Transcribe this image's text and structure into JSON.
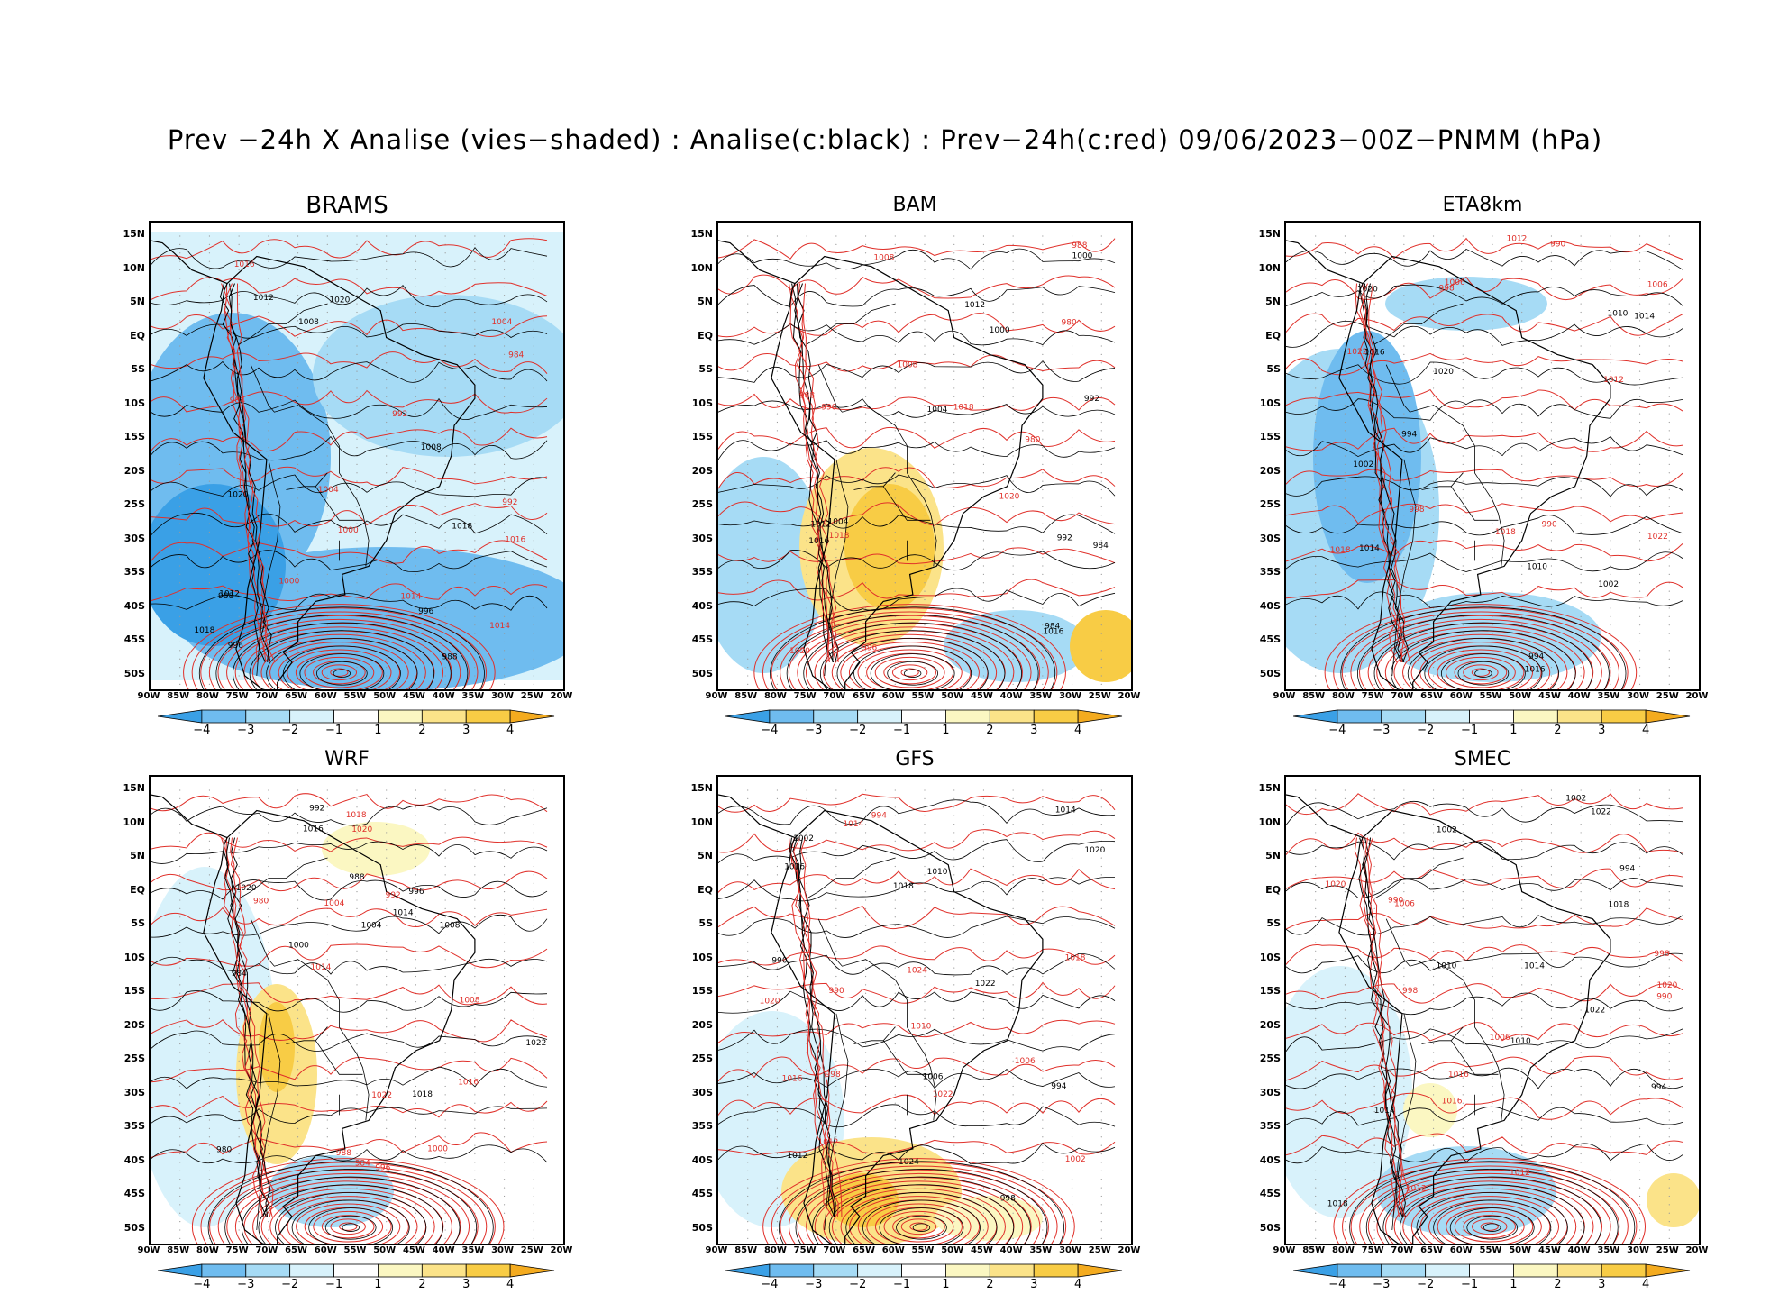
{
  "figure": {
    "title": "Prev −24h X Analise (vies−shaded) : Analise(c:black) : Prev−24h(c:red) 09/06/2023−00Z−PNMM (hPa)"
  },
  "colors": {
    "analysis_contour": "#000000",
    "forecast_contour": "#e0302a",
    "bias_neg4": "#3aa0e6",
    "bias_neg3": "#6fbcef",
    "bias_neg2": "#a6dbf5",
    "bias_neg1": "#d8f2fb",
    "bias_pos1": "#fbf7c2",
    "bias_pos2": "#fbe389",
    "bias_pos3": "#f8cc45",
    "bias_pos4": "#f4ab1f",
    "land_outline": "#000000",
    "grid": "#999999"
  },
  "axes": {
    "lat_labels": [
      "15N",
      "10N",
      "5N",
      "EQ",
      "5S",
      "10S",
      "15S",
      "20S",
      "25S",
      "30S",
      "35S",
      "40S",
      "45S",
      "50S"
    ],
    "lon_labels": [
      "90W",
      "85W",
      "80W",
      "75W",
      "70W",
      "65W",
      "60W",
      "55W",
      "50W",
      "45W",
      "40W",
      "35W",
      "30W",
      "25W",
      "20W"
    ]
  },
  "colorbar": {
    "labels": [
      "−4",
      "−3",
      "−2",
      "−1",
      "1",
      "2",
      "3",
      "4"
    ]
  },
  "chart_data": [
    {
      "type": "heatmap",
      "title": "BRAMS",
      "variable": "PNMM bias (hPa)",
      "lat_range": [
        -52,
        17
      ],
      "lon_range": [
        -90,
        -20
      ],
      "dominant_bias": "negative (−1 to −4) over most of domain",
      "contour_labels": [
        "1012",
        "1016",
        "1020",
        "1004",
        "1008",
        "1014",
        "1018",
        "1000",
        "996",
        "992",
        "988",
        "984"
      ]
    },
    {
      "type": "heatmap",
      "title": "BAM",
      "variable": "PNMM bias (hPa)",
      "lat_range": [
        -52,
        17
      ],
      "lon_range": [
        -90,
        -20
      ],
      "dominant_bias": "positive (1 to 4) over southern South America, weak elsewhere",
      "contour_labels": [
        "1016",
        "1018",
        "1012",
        "1020",
        "1004",
        "1008",
        "1000",
        "996",
        "992",
        "988",
        "984",
        "980"
      ]
    },
    {
      "type": "heatmap",
      "title": "ETA8km",
      "variable": "PNMM bias (hPa)",
      "lat_range": [
        -52,
        17
      ],
      "lon_range": [
        -90,
        -20
      ],
      "dominant_bias": "negative (−1 to −4) over Pacific and Andes",
      "contour_labels": [
        "1016",
        "1018",
        "1014",
        "1012",
        "1020",
        "1022",
        "1010",
        "1006",
        "1002",
        "998",
        "994",
        "990"
      ]
    },
    {
      "type": "heatmap",
      "title": "WRF",
      "variable": "PNMM bias (hPa)",
      "lat_range": [
        -52,
        17
      ],
      "lon_range": [
        -90,
        -20
      ],
      "dominant_bias": "mixed, positive over Andes/Argentina",
      "contour_labels": [
        "1016",
        "1018",
        "1014",
        "1022",
        "1020",
        "1008",
        "1004",
        "1000",
        "996",
        "992",
        "988",
        "984",
        "980"
      ]
    },
    {
      "type": "heatmap",
      "title": "GFS",
      "variable": "PNMM bias (hPa)",
      "lat_range": [
        -52,
        17
      ],
      "lon_range": [
        -90,
        -20
      ],
      "dominant_bias": "positive over southern Argentina",
      "contour_labels": [
        "1016",
        "1018",
        "1012",
        "1014",
        "1020",
        "1022",
        "1024",
        "1010",
        "1006",
        "1002",
        "998",
        "994",
        "990"
      ]
    },
    {
      "type": "heatmap",
      "title": "SMEC",
      "variable": "PNMM bias (hPa)",
      "lat_range": [
        -52,
        17
      ],
      "lon_range": [
        -90,
        -20
      ],
      "dominant_bias": "weak, slight negative south",
      "contour_labels": [
        "1018",
        "1016",
        "1014",
        "1020",
        "1022",
        "1012",
        "1010",
        "1006",
        "1002",
        "998",
        "994",
        "990"
      ]
    }
  ]
}
